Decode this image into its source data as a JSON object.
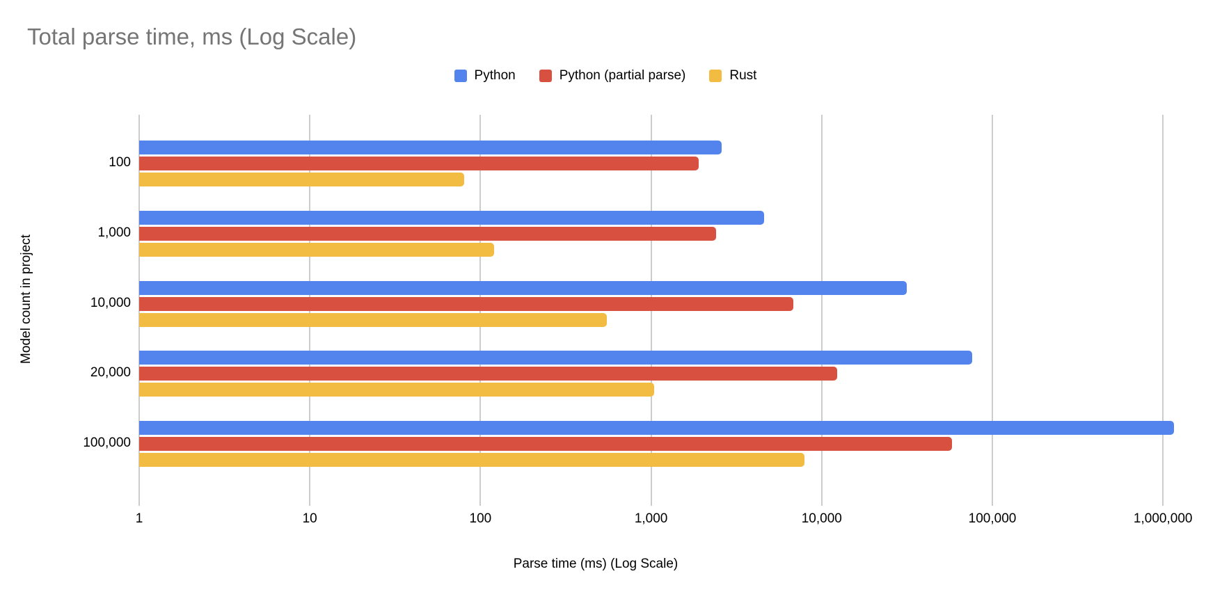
{
  "title": "Total parse time, ms (Log Scale)",
  "colors": {
    "title_text": "#757575",
    "axis_text": "#000000",
    "gridline": "#cccccc",
    "series_blue": "#5383EC",
    "series_red": "#D8503F",
    "series_yellow": "#F2BC42"
  },
  "chart_data": {
    "type": "bar",
    "orientation": "horizontal",
    "title": "Total parse time, ms (Log Scale)",
    "xlabel": "Parse time (ms) (Log Scale)",
    "ylabel": "Model count in project",
    "x_scale": "log10",
    "xlim": [
      1,
      1000000
    ],
    "x_ticks": [
      "1",
      "10",
      "100",
      "1,000",
      "10,000",
      "100,000",
      "1,000,000"
    ],
    "grid": true,
    "legend_position": "top",
    "categories": [
      "100",
      "1,000",
      "10,000",
      "20,000",
      "100,000"
    ],
    "series": [
      {
        "name": "Python",
        "color": "#5383EC",
        "values": [
          2600,
          4600,
          31500,
          76000,
          1160000
        ]
      },
      {
        "name": "Python (partial parse)",
        "color": "#D8503F",
        "values": [
          1900,
          2400,
          6800,
          12300,
          58000
        ]
      },
      {
        "name": "Rust",
        "color": "#F2BC42",
        "values": [
          80,
          120,
          550,
          1040,
          7900
        ]
      }
    ]
  }
}
